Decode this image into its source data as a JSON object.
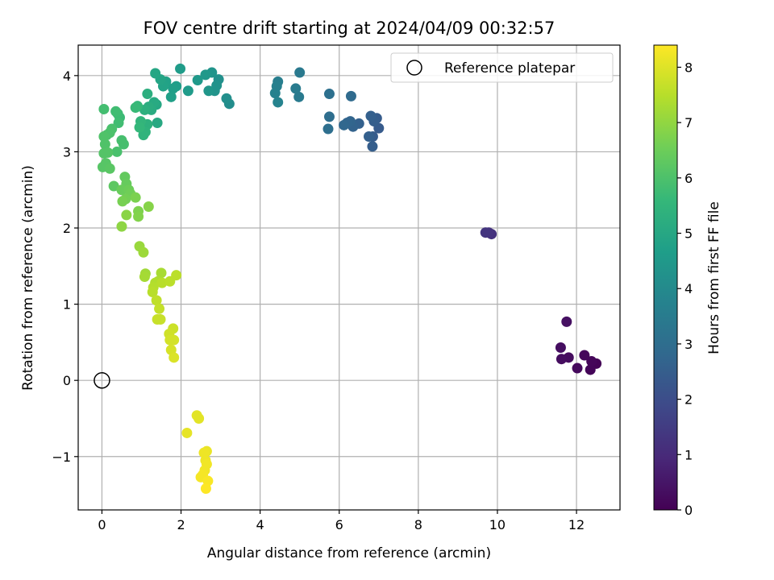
{
  "chart_data": {
    "type": "scatter",
    "title": "FOV centre drift starting at 2024/04/09 00:32:57",
    "xlabel": "Angular distance from reference (arcmin)",
    "ylabel": "Rotation from reference (arcmin)",
    "xlim": [
      -0.6,
      13.1
    ],
    "ylim": [
      -1.7,
      4.4
    ],
    "xticks": [
      0,
      2,
      4,
      6,
      8,
      10,
      12
    ],
    "yticks": [
      -1,
      0,
      1,
      2,
      3,
      4
    ],
    "xtick_labels": [
      "0",
      "2",
      "4",
      "6",
      "8",
      "10",
      "12"
    ],
    "ytick_labels": [
      "−1",
      "0",
      "1",
      "2",
      "3",
      "4"
    ],
    "grid": true,
    "legend": {
      "position": "top-right",
      "label": "Reference platepar"
    },
    "reference_point": {
      "x": 0,
      "y": 0
    },
    "colorbar": {
      "label": "Hours from first FF file",
      "min": 0,
      "max": 8.4,
      "ticks": [
        0,
        1,
        2,
        3,
        4,
        5,
        6,
        7,
        8
      ],
      "tick_labels": [
        "0",
        "1",
        "2",
        "3",
        "4",
        "5",
        "6",
        "7",
        "8"
      ],
      "colormap_stops": [
        "#440154",
        "#482878",
        "#3e4989",
        "#31688e",
        "#26828e",
        "#1f9e89",
        "#35b779",
        "#6ece58",
        "#b5de2b",
        "#fde725"
      ]
    },
    "points": [
      {
        "x": 12.5,
        "y": 0.22,
        "t": 0.05
      },
      {
        "x": 12.35,
        "y": 0.14,
        "t": 0.1
      },
      {
        "x": 12.38,
        "y": 0.25,
        "t": 0.12
      },
      {
        "x": 12.2,
        "y": 0.33,
        "t": 0.15
      },
      {
        "x": 12.02,
        "y": 0.16,
        "t": 0.2
      },
      {
        "x": 11.8,
        "y": 0.3,
        "t": 0.25
      },
      {
        "x": 11.62,
        "y": 0.28,
        "t": 0.28
      },
      {
        "x": 11.6,
        "y": 0.43,
        "t": 0.3
      },
      {
        "x": 11.75,
        "y": 0.77,
        "t": 0.35
      },
      {
        "x": 9.85,
        "y": 1.92,
        "t": 1.2
      },
      {
        "x": 9.78,
        "y": 1.94,
        "t": 1.25
      },
      {
        "x": 9.7,
        "y": 1.94,
        "t": 1.3
      },
      {
        "x": 7.0,
        "y": 3.31,
        "t": 2.4
      },
      {
        "x": 6.95,
        "y": 3.44,
        "t": 2.45
      },
      {
        "x": 6.88,
        "y": 3.4,
        "t": 2.5
      },
      {
        "x": 6.8,
        "y": 3.47,
        "t": 2.55
      },
      {
        "x": 6.85,
        "y": 3.2,
        "t": 2.45
      },
      {
        "x": 6.84,
        "y": 3.07,
        "t": 2.5
      },
      {
        "x": 6.75,
        "y": 3.2,
        "t": 2.55
      },
      {
        "x": 6.5,
        "y": 3.37,
        "t": 2.6
      },
      {
        "x": 6.35,
        "y": 3.33,
        "t": 2.65
      },
      {
        "x": 6.28,
        "y": 3.4,
        "t": 2.7
      },
      {
        "x": 6.2,
        "y": 3.38,
        "t": 2.75
      },
      {
        "x": 6.12,
        "y": 3.35,
        "t": 2.8
      },
      {
        "x": 6.3,
        "y": 3.73,
        "t": 2.9
      },
      {
        "x": 5.75,
        "y": 3.46,
        "t": 3.0
      },
      {
        "x": 5.72,
        "y": 3.3,
        "t": 3.05
      },
      {
        "x": 5.75,
        "y": 3.76,
        "t": 3.1
      },
      {
        "x": 5.0,
        "y": 4.04,
        "t": 3.4
      },
      {
        "x": 4.98,
        "y": 3.72,
        "t": 3.45
      },
      {
        "x": 4.9,
        "y": 3.83,
        "t": 3.5
      },
      {
        "x": 4.45,
        "y": 3.92,
        "t": 3.6
      },
      {
        "x": 4.42,
        "y": 3.86,
        "t": 3.65
      },
      {
        "x": 4.38,
        "y": 3.77,
        "t": 3.7
      },
      {
        "x": 4.45,
        "y": 3.65,
        "t": 3.75
      },
      {
        "x": 3.22,
        "y": 3.63,
        "t": 4.1
      },
      {
        "x": 3.15,
        "y": 3.7,
        "t": 4.15
      },
      {
        "x": 2.95,
        "y": 3.95,
        "t": 4.2
      },
      {
        "x": 2.9,
        "y": 3.87,
        "t": 4.25
      },
      {
        "x": 2.85,
        "y": 3.8,
        "t": 4.3
      },
      {
        "x": 2.78,
        "y": 4.04,
        "t": 4.35
      },
      {
        "x": 2.7,
        "y": 3.8,
        "t": 4.4
      },
      {
        "x": 2.62,
        "y": 4.01,
        "t": 4.45
      },
      {
        "x": 2.42,
        "y": 3.94,
        "t": 4.5
      },
      {
        "x": 2.18,
        "y": 3.8,
        "t": 4.55
      },
      {
        "x": 1.98,
        "y": 4.09,
        "t": 4.6
      },
      {
        "x": 1.88,
        "y": 3.86,
        "t": 4.65
      },
      {
        "x": 1.8,
        "y": 3.83,
        "t": 4.7
      },
      {
        "x": 1.75,
        "y": 3.72,
        "t": 4.75
      },
      {
        "x": 1.62,
        "y": 3.92,
        "t": 4.8
      },
      {
        "x": 1.55,
        "y": 3.86,
        "t": 4.85
      },
      {
        "x": 1.48,
        "y": 3.95,
        "t": 4.9
      },
      {
        "x": 1.35,
        "y": 4.03,
        "t": 4.95
      },
      {
        "x": 1.38,
        "y": 3.62,
        "t": 5.0
      },
      {
        "x": 1.4,
        "y": 3.38,
        "t": 5.05
      },
      {
        "x": 1.32,
        "y": 3.65,
        "t": 5.1
      },
      {
        "x": 1.25,
        "y": 3.55,
        "t": 5.15
      },
      {
        "x": 1.18,
        "y": 3.59,
        "t": 5.2
      },
      {
        "x": 1.15,
        "y": 3.76,
        "t": 5.25
      },
      {
        "x": 1.08,
        "y": 3.55,
        "t": 5.3
      },
      {
        "x": 1.15,
        "y": 3.36,
        "t": 5.35
      },
      {
        "x": 1.1,
        "y": 3.26,
        "t": 5.4
      },
      {
        "x": 1.05,
        "y": 3.22,
        "t": 5.45
      },
      {
        "x": 0.98,
        "y": 3.4,
        "t": 5.5
      },
      {
        "x": 0.95,
        "y": 3.32,
        "t": 5.55
      },
      {
        "x": 0.9,
        "y": 3.6,
        "t": 5.6
      },
      {
        "x": 0.85,
        "y": 3.58,
        "t": 5.65
      },
      {
        "x": 0.45,
        "y": 3.45,
        "t": 5.7
      },
      {
        "x": 0.4,
        "y": 3.5,
        "t": 5.75
      },
      {
        "x": 0.35,
        "y": 3.53,
        "t": 5.8
      },
      {
        "x": 0.42,
        "y": 3.38,
        "t": 5.8
      },
      {
        "x": 0.05,
        "y": 3.56,
        "t": 5.85
      },
      {
        "x": 0.55,
        "y": 3.1,
        "t": 5.9
      },
      {
        "x": 0.5,
        "y": 3.15,
        "t": 5.9
      },
      {
        "x": 0.38,
        "y": 3.0,
        "t": 5.95
      },
      {
        "x": 0.25,
        "y": 3.3,
        "t": 5.95
      },
      {
        "x": 0.2,
        "y": 3.25,
        "t": 6.0
      },
      {
        "x": 0.12,
        "y": 3.22,
        "t": 6.0
      },
      {
        "x": 0.05,
        "y": 3.2,
        "t": 6.05
      },
      {
        "x": 0.08,
        "y": 3.1,
        "t": 6.05
      },
      {
        "x": 0.15,
        "y": 2.99,
        "t": 6.1
      },
      {
        "x": 0.05,
        "y": 2.98,
        "t": 6.1
      },
      {
        "x": 0.1,
        "y": 2.85,
        "t": 6.15
      },
      {
        "x": 0.02,
        "y": 2.8,
        "t": 6.15
      },
      {
        "x": 0.2,
        "y": 2.78,
        "t": 6.2
      },
      {
        "x": 0.3,
        "y": 2.55,
        "t": 6.25
      },
      {
        "x": 0.58,
        "y": 2.67,
        "t": 6.35
      },
      {
        "x": 0.62,
        "y": 2.58,
        "t": 6.4
      },
      {
        "x": 0.5,
        "y": 2.5,
        "t": 6.45
      },
      {
        "x": 0.68,
        "y": 2.5,
        "t": 6.5
      },
      {
        "x": 0.72,
        "y": 2.45,
        "t": 6.55
      },
      {
        "x": 0.6,
        "y": 2.38,
        "t": 6.6
      },
      {
        "x": 0.52,
        "y": 2.35,
        "t": 6.65
      },
      {
        "x": 0.85,
        "y": 2.4,
        "t": 6.7
      },
      {
        "x": 0.92,
        "y": 2.22,
        "t": 6.75
      },
      {
        "x": 0.92,
        "y": 2.15,
        "t": 6.8
      },
      {
        "x": 1.18,
        "y": 2.28,
        "t": 6.85
      },
      {
        "x": 0.62,
        "y": 2.17,
        "t": 6.9
      },
      {
        "x": 0.5,
        "y": 2.02,
        "t": 6.95
      },
      {
        "x": 0.95,
        "y": 1.76,
        "t": 7.1
      },
      {
        "x": 1.05,
        "y": 1.68,
        "t": 7.15
      },
      {
        "x": 1.1,
        "y": 1.4,
        "t": 7.2
      },
      {
        "x": 1.08,
        "y": 1.36,
        "t": 7.25
      },
      {
        "x": 1.5,
        "y": 1.41,
        "t": 7.3
      },
      {
        "x": 1.42,
        "y": 1.3,
        "t": 7.35
      },
      {
        "x": 1.35,
        "y": 1.28,
        "t": 7.4
      },
      {
        "x": 1.3,
        "y": 1.22,
        "t": 7.45
      },
      {
        "x": 1.28,
        "y": 1.16,
        "t": 7.5
      },
      {
        "x": 1.52,
        "y": 1.28,
        "t": 7.5
      },
      {
        "x": 1.72,
        "y": 1.3,
        "t": 7.55
      },
      {
        "x": 1.88,
        "y": 1.38,
        "t": 7.55
      },
      {
        "x": 1.38,
        "y": 1.05,
        "t": 7.6
      },
      {
        "x": 1.45,
        "y": 0.94,
        "t": 7.65
      },
      {
        "x": 1.4,
        "y": 0.8,
        "t": 7.7
      },
      {
        "x": 1.48,
        "y": 0.8,
        "t": 7.7
      },
      {
        "x": 1.8,
        "y": 0.68,
        "t": 7.75
      },
      {
        "x": 1.7,
        "y": 0.61,
        "t": 7.8
      },
      {
        "x": 1.72,
        "y": 0.53,
        "t": 7.85
      },
      {
        "x": 1.82,
        "y": 0.53,
        "t": 7.85
      },
      {
        "x": 1.75,
        "y": 0.4,
        "t": 7.9
      },
      {
        "x": 1.82,
        "y": 0.3,
        "t": 7.95
      },
      {
        "x": 2.4,
        "y": -0.46,
        "t": 8.05
      },
      {
        "x": 2.45,
        "y": -0.5,
        "t": 8.05
      },
      {
        "x": 2.15,
        "y": -0.69,
        "t": 8.1
      },
      {
        "x": 2.65,
        "y": -0.93,
        "t": 8.15
      },
      {
        "x": 2.58,
        "y": -0.95,
        "t": 8.2
      },
      {
        "x": 2.62,
        "y": -1.05,
        "t": 8.2
      },
      {
        "x": 2.65,
        "y": -1.1,
        "t": 8.25
      },
      {
        "x": 2.6,
        "y": -1.18,
        "t": 8.25
      },
      {
        "x": 2.55,
        "y": -1.24,
        "t": 8.3
      },
      {
        "x": 2.5,
        "y": -1.27,
        "t": 8.3
      },
      {
        "x": 2.68,
        "y": -1.32,
        "t": 8.35
      },
      {
        "x": 2.63,
        "y": -1.42,
        "t": 8.4
      }
    ]
  }
}
